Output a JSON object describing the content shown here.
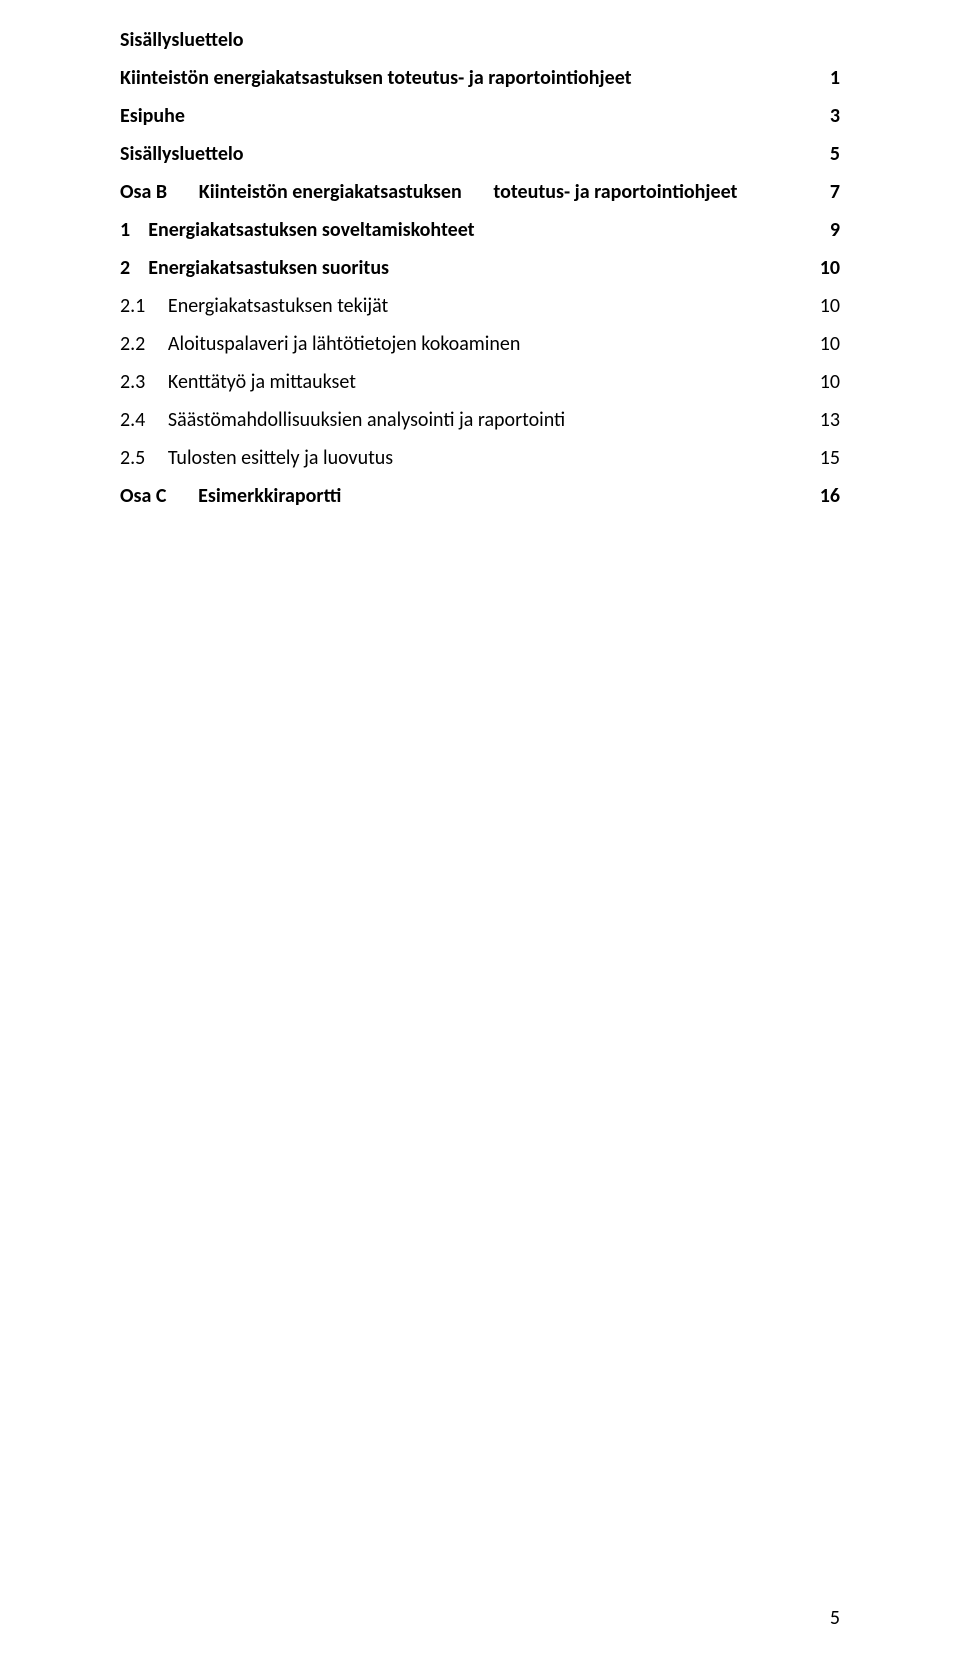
{
  "toc": {
    "title": "Sisällysluettelo",
    "entries": [
      {
        "label": "Kiinteistön energiakatsastuksen toteutus- ja raportointiohjeet",
        "page": "1",
        "bold": true,
        "indent": 0
      },
      {
        "label": "Esipuhe",
        "page": "3",
        "bold": true,
        "indent": 0
      },
      {
        "label": "Sisällysluettelo",
        "page": "5",
        "bold": true,
        "indent": 0
      },
      {
        "label": "Osa B       Kiinteistön energiakatsastuksen       toteutus- ja raportointiohjeet",
        "page": "7",
        "bold": true,
        "indent": 0
      },
      {
        "label": "1    Energiakatsastuksen soveltamiskohteet",
        "page": "9",
        "bold": true,
        "indent": 0
      },
      {
        "label": "2    Energiakatsastuksen suoritus",
        "page": "10",
        "bold": true,
        "indent": 0
      },
      {
        "label": "2.1     Energiakatsastuksen tekijät",
        "page": "10",
        "bold": false,
        "indent": 1
      },
      {
        "label": "2.2     Aloituspalaveri ja lähtötietojen kokoaminen",
        "page": "10",
        "bold": false,
        "indent": 1
      },
      {
        "label": "2.3     Kenttätyö ja mittaukset",
        "page": "10",
        "bold": false,
        "indent": 1
      },
      {
        "label": "2.4     Säästömahdollisuuksien analysointi ja raportointi",
        "page": "13",
        "bold": false,
        "indent": 1
      },
      {
        "label": "2.5     Tulosten esittely ja luovutus",
        "page": "15",
        "bold": false,
        "indent": 1
      },
      {
        "label": "Osa C       Esimerkkiraportti",
        "page": "16",
        "bold": true,
        "indent": 0
      }
    ]
  },
  "pageNumber": "5",
  "colors": {
    "background": "#ffffff",
    "text": "#000000"
  },
  "typography": {
    "font_family": "Calibri, Arial, sans-serif",
    "title_size_pt": 15,
    "entry_size_pt": 15
  }
}
